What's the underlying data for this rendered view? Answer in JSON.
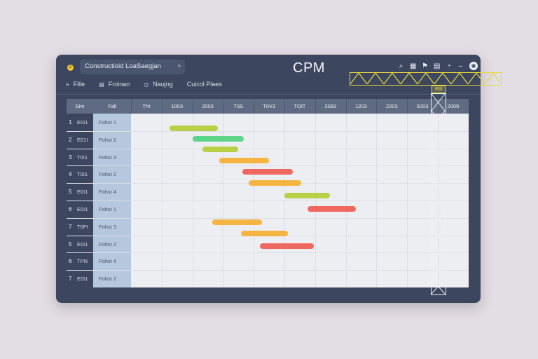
{
  "app": {
    "badge": "2",
    "window_title": "Constructioid LoaSaegjan",
    "title_chevron": "»",
    "name": "CPM"
  },
  "toolbar_icons": [
    "search-icon",
    "calendar-icon",
    "flag-icon",
    "grid-icon",
    "bell-icon",
    "minimize-icon",
    "user-icon"
  ],
  "toolbar_glyphs": [
    "⌕",
    "▦",
    "⚑",
    "▤",
    "◔",
    "–",
    "◉"
  ],
  "crane_label": "▤▤",
  "menu": [
    {
      "icon": "≡",
      "label": "Fille"
    },
    {
      "icon": "▤",
      "label": "Froinao"
    },
    {
      "icon": "◷",
      "label": "Naujng"
    },
    {
      "icon": "",
      "label": "Cuicol Plaes"
    }
  ],
  "columns": {
    "id": "Sim",
    "name": "Fall",
    "timeline": [
      "Tht",
      "1003",
      "2003",
      "T9S",
      "T0V3",
      "TOIT",
      "2083",
      "1203",
      "2203",
      "5003",
      "2009"
    ]
  },
  "rows": [
    {
      "num": "1",
      "code": "E0I1",
      "name": "Fohst 1"
    },
    {
      "num": "2",
      "code": "E01I",
      "name": "Fohst 2"
    },
    {
      "num": "3",
      "code": "T0I1",
      "name": "Fohst 3"
    },
    {
      "num": "4",
      "code": "T0I1",
      "name": "Fohst 2"
    },
    {
      "num": "5",
      "code": "E0I1",
      "name": "Fohst 4"
    },
    {
      "num": "6",
      "code": "E0I1",
      "name": "Fohst 1"
    },
    {
      "num": "7",
      "code": "T0PI",
      "name": "Fohst 3"
    },
    {
      "num": "5",
      "code": "E0I1",
      "name": "Fohst 2"
    },
    {
      "num": "6",
      "code": "TPN",
      "name": "Fohst 4"
    },
    {
      "num": "7",
      "code": "E0I1",
      "name": "Fohst 2"
    }
  ],
  "colors": {
    "accent": "#f2c431",
    "lime": "#b9cf46",
    "green": "#5ed48a",
    "orange": "#f6b542",
    "red": "#ef6860"
  },
  "tasks": [
    {
      "color": "lime",
      "start": 1.26,
      "end": 2.83
    },
    {
      "color": "green",
      "start": 2.0,
      "end": 3.67
    },
    {
      "color": "lime",
      "start": 2.32,
      "end": 3.5
    },
    {
      "color": "orange",
      "start": 2.88,
      "end": 4.5
    },
    {
      "color": "red",
      "start": 3.63,
      "end": 5.27
    },
    {
      "color": "orange",
      "start": 3.83,
      "end": 5.55
    },
    {
      "color": "lime",
      "start": 5.0,
      "end": 6.48
    },
    {
      "color": "red",
      "start": 5.75,
      "end": 7.34
    },
    {
      "color": "orange",
      "start": 2.65,
      "end": 4.28
    },
    {
      "color": "orange",
      "start": 3.58,
      "end": 5.12
    },
    {
      "color": "red",
      "start": 4.2,
      "end": 5.95
    }
  ]
}
